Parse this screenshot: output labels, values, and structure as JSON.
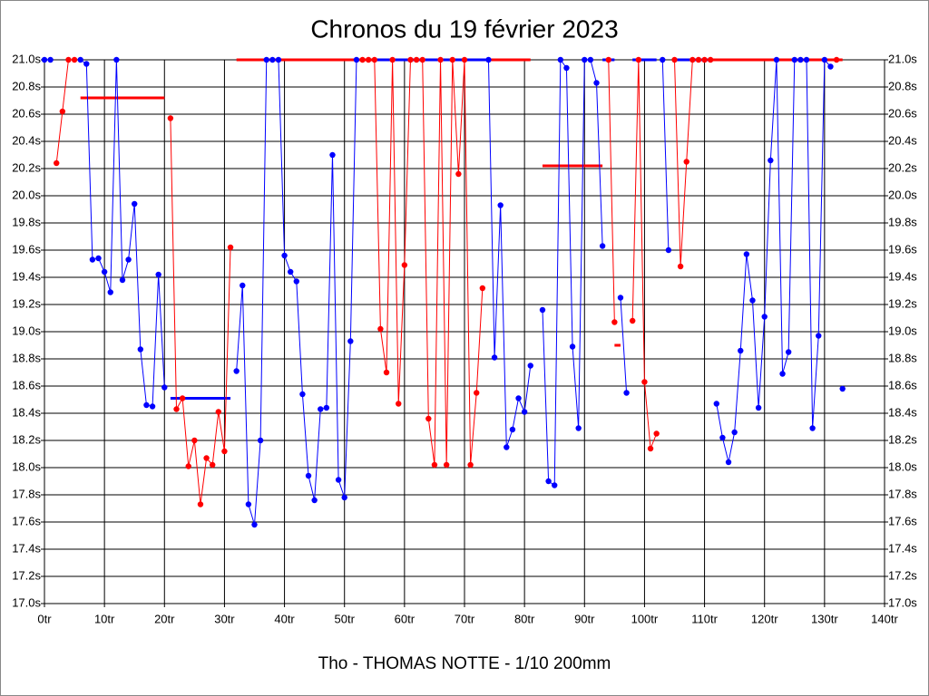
{
  "chart_data": {
    "type": "line",
    "title": "Chronos du 19 février 2023",
    "xlabel": "Tho - THOMAS NOTTE - 1/10 200mm",
    "xlim": [
      0,
      140
    ],
    "xticks": [
      {
        "value": 0,
        "label": "0tr"
      },
      {
        "value": 10,
        "label": "10tr"
      },
      {
        "value": 20,
        "label": "20tr"
      },
      {
        "value": 30,
        "label": "30tr"
      },
      {
        "value": 40,
        "label": "40tr"
      },
      {
        "value": 50,
        "label": "50tr"
      },
      {
        "value": 60,
        "label": "60tr"
      },
      {
        "value": 70,
        "label": "70tr"
      },
      {
        "value": 80,
        "label": "80tr"
      },
      {
        "value": 90,
        "label": "90tr"
      },
      {
        "value": 100,
        "label": "100tr"
      },
      {
        "value": 110,
        "label": "110tr"
      },
      {
        "value": 120,
        "label": "120tr"
      },
      {
        "value": 130,
        "label": "130tr"
      },
      {
        "value": 140,
        "label": "140tr"
      }
    ],
    "ylim": [
      17,
      21
    ],
    "yticks": [
      {
        "value": 17,
        "label": "17.0s"
      },
      {
        "value": 17.2,
        "label": "17.2s"
      },
      {
        "value": 17.4,
        "label": "17.4s"
      },
      {
        "value": 17.6,
        "label": "17.6s"
      },
      {
        "value": 17.8,
        "label": "17.8s"
      },
      {
        "value": 18,
        "label": "18.0s"
      },
      {
        "value": 18.2,
        "label": "18.2s"
      },
      {
        "value": 18.4,
        "label": "18.4s"
      },
      {
        "value": 18.6,
        "label": "18.6s"
      },
      {
        "value": 18.8,
        "label": "18.8s"
      },
      {
        "value": 19,
        "label": "19.0s"
      },
      {
        "value": 19.2,
        "label": "19.2s"
      },
      {
        "value": 19.4,
        "label": "19.4s"
      },
      {
        "value": 19.6,
        "label": "19.6s"
      },
      {
        "value": 19.8,
        "label": "19.8s"
      },
      {
        "value": 20,
        "label": "20.0s"
      },
      {
        "value": 20.2,
        "label": "20.2s"
      },
      {
        "value": 20.4,
        "label": "20.4s"
      },
      {
        "value": 20.6,
        "label": "20.6s"
      },
      {
        "value": 20.8,
        "label": "20.8s"
      },
      {
        "value": 21,
        "label": "21.0s"
      }
    ],
    "grid": true,
    "series": [
      {
        "color": "#0000ff",
        "x": [
          0,
          1
        ],
        "values": [
          21,
          21
        ]
      },
      {
        "color": "#ff0000",
        "x": [
          2,
          3,
          4,
          5
        ],
        "values": [
          20.24,
          20.62,
          21,
          21
        ]
      },
      {
        "color": "#0000ff",
        "x": [
          6,
          7,
          8,
          9,
          10,
          11,
          12,
          13,
          14,
          15,
          16,
          17,
          18,
          19,
          20
        ],
        "values": [
          21,
          20.97,
          19.53,
          19.54,
          19.44,
          19.29,
          21,
          19.38,
          19.53,
          19.94,
          18.87,
          18.46,
          18.45,
          19.42,
          18.59
        ]
      },
      {
        "color": "#ff0000",
        "x": [
          21,
          22,
          23,
          24,
          25,
          26,
          27,
          28,
          29,
          30,
          31
        ],
        "values": [
          20.57,
          18.43,
          18.51,
          18.01,
          18.2,
          17.73,
          18.07,
          18.02,
          18.41,
          18.12,
          19.62
        ]
      },
      {
        "color": "#0000ff",
        "x": [
          32,
          33,
          34,
          35,
          36,
          37,
          38,
          39,
          40,
          41,
          42,
          43,
          44,
          45,
          46,
          47,
          48,
          49,
          50,
          51,
          52
        ],
        "values": [
          18.71,
          19.34,
          17.73,
          17.58,
          18.2,
          21,
          21,
          21,
          19.56,
          19.44,
          19.37,
          18.54,
          17.94,
          17.76,
          18.43,
          18.44,
          20.3,
          17.91,
          17.78,
          18.93,
          21
        ]
      },
      {
        "color": "#ff0000",
        "x": [
          53,
          54,
          55,
          56,
          57,
          58,
          59,
          60,
          61,
          62,
          63,
          64,
          65,
          66,
          67,
          68,
          69,
          70,
          71,
          72,
          73
        ],
        "values": [
          21,
          21,
          21,
          19.02,
          18.7,
          21,
          18.47,
          19.49,
          21,
          21,
          21,
          18.36,
          18.02,
          21,
          18.02,
          21,
          20.16,
          21,
          18.02,
          18.55,
          19.32
        ]
      },
      {
        "color": "#0000ff",
        "x": [
          74,
          75,
          76,
          77,
          78,
          79,
          80,
          81
        ],
        "values": [
          21,
          18.81,
          19.93,
          18.15,
          18.28,
          18.51,
          18.41,
          18.75
        ]
      },
      {
        "color": "#0000ff",
        "x": [
          83,
          84,
          85,
          86,
          87,
          88,
          89,
          90,
          91,
          92,
          93
        ],
        "values": [
          19.16,
          17.9,
          17.87,
          21,
          20.94,
          18.89,
          18.29,
          21,
          21,
          20.83,
          19.63
        ]
      },
      {
        "color": "#ff0000",
        "x": [
          94,
          95
        ],
        "values": [
          21,
          19.07
        ]
      },
      {
        "color": "#0000ff",
        "x": [
          96,
          97
        ],
        "values": [
          19.25,
          18.55
        ]
      },
      {
        "color": "#ff0000",
        "x": [
          98,
          99,
          100,
          101,
          102
        ],
        "values": [
          19.08,
          21,
          18.63,
          18.14,
          18.25
        ]
      },
      {
        "color": "#0000ff",
        "x": [
          103,
          104
        ],
        "values": [
          21,
          19.6
        ]
      },
      {
        "color": "#ff0000",
        "x": [
          105,
          106,
          107,
          108,
          109,
          110,
          111
        ],
        "values": [
          21,
          19.48,
          20.25,
          21,
          21,
          21,
          21
        ]
      },
      {
        "color": "#0000ff",
        "x": [
          112,
          113,
          114,
          115,
          116,
          117,
          118,
          119,
          120,
          121,
          122,
          123,
          124,
          125,
          126,
          127,
          128,
          129,
          130,
          131
        ],
        "values": [
          18.47,
          18.22,
          18.04,
          18.26,
          18.86,
          19.57,
          19.23,
          18.44,
          19.11,
          20.26,
          21,
          18.69,
          18.85,
          21,
          21,
          21,
          18.29,
          18.97,
          21,
          20.95
        ]
      },
      {
        "color": "#ff0000",
        "x": [
          132
        ],
        "values": [
          21
        ]
      },
      {
        "color": "#0000ff",
        "x": [
          133
        ],
        "values": [
          18.58
        ]
      }
    ],
    "averages": [
      {
        "color": "#ff0000",
        "x": [
          6,
          20
        ],
        "value": 20.72
      },
      {
        "color": "#0000ff",
        "x": [
          21,
          31
        ],
        "value": 18.51
      },
      {
        "color": "#ff0000",
        "x": [
          32,
          81
        ],
        "value": 21
      },
      {
        "color": "#0000ff",
        "x": [
          55,
          74
        ],
        "value": 21
      },
      {
        "color": "#ff0000",
        "x": [
          83,
          93
        ],
        "value": 20.22
      },
      {
        "color": "#0000ff",
        "x": [
          93,
          95
        ],
        "value": 21
      },
      {
        "color": "#ff0000",
        "x": [
          95,
          96
        ],
        "value": 18.9
      },
      {
        "color": "#0000ff",
        "x": [
          98,
          102
        ],
        "value": 21
      },
      {
        "color": "#0000ff",
        "x": [
          105,
          111
        ],
        "value": 21
      },
      {
        "color": "#ff0000",
        "x": [
          111,
          133
        ],
        "value": 21
      }
    ]
  }
}
